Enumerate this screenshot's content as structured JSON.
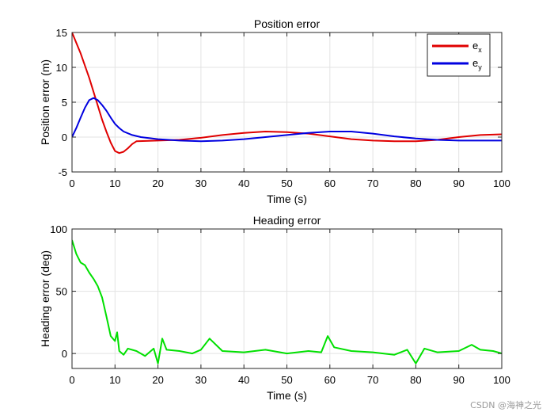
{
  "chart_data": [
    {
      "type": "line",
      "title": "Position error",
      "xlabel": "Time (s)",
      "ylabel": "Position error (m)",
      "xlim": [
        0,
        100
      ],
      "ylim": [
        -5,
        15
      ],
      "xticks": [
        0,
        10,
        20,
        30,
        40,
        50,
        60,
        70,
        80,
        90,
        100
      ],
      "yticks": [
        -5,
        0,
        5,
        10,
        15
      ],
      "grid": true,
      "legend": {
        "placement": "top-right",
        "entries": [
          {
            "base": "e",
            "sub": "x"
          },
          {
            "base": "e",
            "sub": "y"
          }
        ]
      },
      "series": [
        {
          "name": "ex",
          "color": "#e00000",
          "x": [
            0,
            2,
            4,
            6,
            7,
            8,
            9,
            10,
            11,
            12,
            13,
            14,
            15,
            20,
            25,
            30,
            35,
            40,
            45,
            50,
            55,
            60,
            65,
            70,
            75,
            80,
            85,
            90,
            95,
            100
          ],
          "y": [
            15,
            12,
            8.5,
            4.5,
            2.5,
            0.8,
            -0.8,
            -2.0,
            -2.3,
            -2.1,
            -1.6,
            -1.0,
            -0.6,
            -0.5,
            -0.4,
            -0.1,
            0.3,
            0.6,
            0.8,
            0.7,
            0.5,
            0.1,
            -0.3,
            -0.5,
            -0.6,
            -0.6,
            -0.4,
            0.0,
            0.3,
            0.4
          ]
        },
        {
          "name": "ey",
          "color": "#0000e0",
          "x": [
            0,
            1,
            2,
            3,
            4,
            5,
            6,
            7,
            8,
            9,
            10,
            11,
            12,
            14,
            16,
            20,
            25,
            30,
            35,
            40,
            45,
            50,
            55,
            60,
            65,
            70,
            75,
            80,
            85,
            90,
            95,
            100
          ],
          "y": [
            0,
            1.3,
            2.8,
            4.2,
            5.3,
            5.6,
            5.3,
            4.6,
            3.8,
            2.8,
            1.9,
            1.3,
            0.8,
            0.3,
            0.0,
            -0.3,
            -0.5,
            -0.6,
            -0.5,
            -0.3,
            0.0,
            0.3,
            0.6,
            0.8,
            0.8,
            0.5,
            0.1,
            -0.2,
            -0.4,
            -0.5,
            -0.5,
            -0.5
          ]
        }
      ]
    },
    {
      "type": "line",
      "title": "Heading error",
      "xlabel": "Time (s)",
      "ylabel": "Heading error (deg)",
      "xlim": [
        0,
        100
      ],
      "ylim": [
        -12,
        100
      ],
      "xticks": [
        0,
        10,
        20,
        30,
        40,
        50,
        60,
        70,
        80,
        90,
        100
      ],
      "yticks": [
        0,
        50,
        100
      ],
      "grid": true,
      "series": [
        {
          "name": "",
          "color": "#00e000",
          "x": [
            0,
            1,
            2,
            3,
            4,
            5,
            6,
            7,
            8,
            9,
            10,
            10.5,
            11,
            12,
            13,
            15,
            17,
            19,
            20,
            21,
            22,
            25,
            28,
            30,
            32,
            35,
            40,
            45,
            50,
            55,
            58,
            59.5,
            61,
            65,
            70,
            75,
            78,
            80,
            82,
            85,
            90,
            93,
            95,
            98,
            100
          ],
          "y": [
            91,
            80,
            73,
            71,
            65,
            60,
            54,
            45,
            30,
            14,
            10,
            17,
            2,
            -1,
            4,
            2,
            -2,
            4,
            -8,
            12,
            3,
            2,
            0,
            3,
            12,
            2,
            1,
            3,
            0,
            2,
            1,
            14,
            5,
            2,
            1,
            -1,
            3,
            -8,
            4,
            1,
            2,
            7,
            3,
            2,
            0
          ]
        }
      ]
    }
  ],
  "watermark": "CSDN @海神之光"
}
